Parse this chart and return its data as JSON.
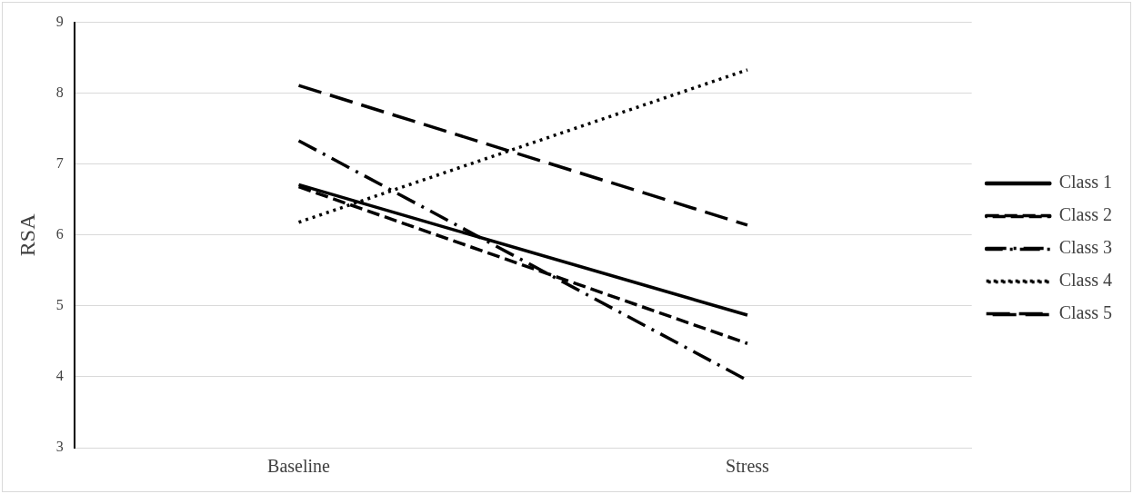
{
  "chart_data": {
    "type": "line",
    "ylabel": "RSA",
    "categories": [
      "Baseline",
      "Stress"
    ],
    "series": [
      {
        "name": "Class 1",
        "color": "#000000",
        "line_style": "solid",
        "values": [
          6.71,
          4.87
        ]
      },
      {
        "name": "Class 2",
        "color": "#000000",
        "line_style": "dashed",
        "values": [
          6.68,
          4.47
        ]
      },
      {
        "name": "Class 3",
        "color": "#000000",
        "line_style": "dashdot",
        "values": [
          7.33,
          3.95
        ]
      },
      {
        "name": "Class 4",
        "color": "#000000",
        "line_style": "dotted",
        "values": [
          6.18,
          8.33
        ]
      },
      {
        "name": "Class 5",
        "color": "#000000",
        "line_style": "longdash",
        "values": [
          8.11,
          6.14
        ]
      }
    ],
    "ylim": [
      3,
      9
    ],
    "yticks": [
      3,
      4,
      5,
      6,
      7,
      8,
      9
    ],
    "grid": "y",
    "legend": "right",
    "marker": "none"
  }
}
